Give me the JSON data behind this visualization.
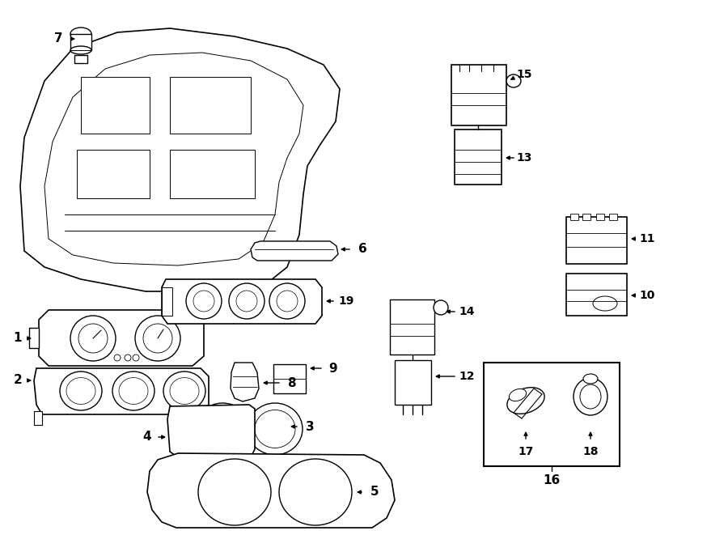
{
  "bg_color": "#ffffff",
  "line_color": "#000000",
  "lw": 1.0,
  "fig_w": 9.0,
  "fig_h": 6.61,
  "dpi": 100
}
